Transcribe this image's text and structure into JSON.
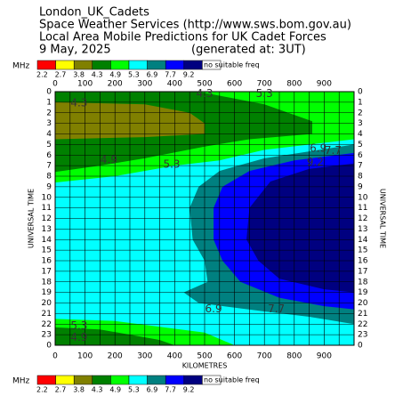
{
  "chart_data": {
    "type": "contour",
    "title_lines": [
      "London_UK_Cadets",
      "Space Weather Services (http://www.sws.bom.gov.au)",
      "Local Area Mobile Predictions for UK Cadet Forces",
      "9 May, 2025"
    ],
    "generated": "(generated at: 3UT)",
    "legend": {
      "unit": "MHz",
      "levels": [
        2.2,
        2.7,
        3.8,
        4.3,
        4.9,
        5.3,
        6.9,
        7.7,
        9.2
      ],
      "colors": [
        "#ff0000",
        "#ffff00",
        "#808000",
        "#008000",
        "#00ff00",
        "#00ffff",
        "#008080",
        "#0000ff",
        "#000080",
        "#ffffff"
      ],
      "none_label": "no suitable freq"
    },
    "xlabel": "KILOMETRES",
    "ylabel": "UNIVERSAL TIME",
    "xlim": [
      0,
      1000
    ],
    "xticks": [
      0,
      100,
      200,
      300,
      400,
      500,
      600,
      700,
      800,
      900
    ],
    "xgrid": [
      0,
      50,
      100,
      150,
      200,
      250,
      300,
      350,
      400,
      450,
      500,
      550,
      600,
      650,
      700,
      750,
      800,
      850,
      900,
      950,
      1000
    ],
    "ylim": [
      0,
      24
    ],
    "yticks": [
      0,
      1,
      2,
      3,
      4,
      5,
      6,
      7,
      8,
      9,
      10,
      11,
      12,
      13,
      14,
      15,
      16,
      17,
      18,
      19,
      20,
      21,
      22,
      23,
      {
        "value": 24,
        "label": "0"
      }
    ],
    "grid": true,
    "background_level": 5.3,
    "regions": [
      {
        "level": 4.9,
        "x": [
          0,
          1000,
          1000,
          700,
          550,
          400,
          200,
          0
        ],
        "y": [
          0,
          0,
          4.5,
          5.5,
          6.5,
          7,
          8,
          8.6
        ]
      },
      {
        "level": 4.3,
        "x": [
          0,
          480,
          700,
          860,
          860,
          650,
          500,
          300,
          150,
          0
        ],
        "y": [
          0,
          0,
          1.2,
          2.8,
          4,
          4.5,
          5.2,
          6.3,
          7,
          7.6
        ]
      },
      {
        "level": 3.8,
        "x": [
          0,
          300,
          450,
          500,
          500,
          300,
          0
        ],
        "y": [
          1,
          1.2,
          2,
          3,
          4,
          4.3,
          4.5
        ]
      },
      {
        "level": 4.9,
        "x": [
          0,
          200,
          500,
          600,
          0
        ],
        "y": [
          21.5,
          21.7,
          22.8,
          24,
          24
        ]
      },
      {
        "level": 4.3,
        "x": [
          0,
          150,
          350,
          400,
          0
        ],
        "y": [
          22.3,
          22.5,
          23.5,
          24,
          24
        ]
      },
      {
        "level": 6.9,
        "x": [
          1000,
          700,
          550,
          480,
          450,
          460,
          500,
          510,
          430,
          480,
          700,
          850,
          1000
        ],
        "y": [
          5,
          6.3,
          7.5,
          9,
          11,
          14,
          16,
          18,
          19,
          20,
          20.8,
          21.3,
          22
        ]
      },
      {
        "level": 7.7,
        "x": [
          1000,
          800,
          650,
          560,
          530,
          530,
          560,
          620,
          750,
          900,
          1000
        ],
        "y": [
          5.8,
          6.5,
          7.5,
          9,
          11,
          14,
          16,
          18,
          19.5,
          20.3,
          20.6
        ]
      },
      {
        "level": 9.2,
        "x": [
          1000,
          850,
          720,
          650,
          640,
          680,
          750,
          900,
          1000
        ],
        "y": [
          6.8,
          7.3,
          8.5,
          11,
          14,
          16,
          17.7,
          18.7,
          19
        ]
      }
    ],
    "annotations": [
      {
        "text": "4.3",
        "x": 80,
        "y": 1.1
      },
      {
        "text": "4.3",
        "x": 500,
        "y": 0.2
      },
      {
        "text": "5.3",
        "x": 700,
        "y": 0.2
      },
      {
        "text": "4.9",
        "x": 180,
        "y": 6.5
      },
      {
        "text": "5.3",
        "x": 390,
        "y": 6.9
      },
      {
        "text": "6.9",
        "x": 880,
        "y": 5.4
      },
      {
        "text": "7.7",
        "x": 930,
        "y": 5.6
      },
      {
        "text": "9.2",
        "x": 870,
        "y": 6.7
      },
      {
        "text": "6.9",
        "x": 530,
        "y": 20.6
      },
      {
        "text": "7.7",
        "x": 740,
        "y": 20.6
      },
      {
        "text": "5.3",
        "x": 80,
        "y": 22.2
      },
      {
        "text": "4.9",
        "x": 80,
        "y": 23.3
      }
    ]
  }
}
